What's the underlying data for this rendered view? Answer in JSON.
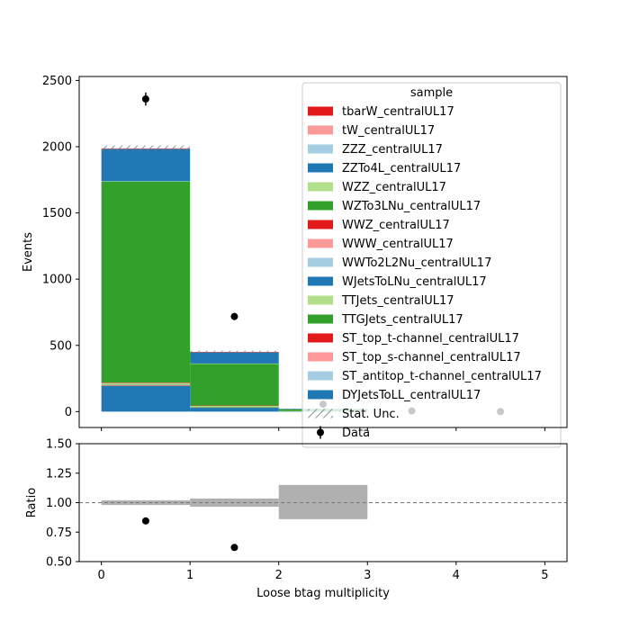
{
  "colors": {
    "red": "#e31a1c",
    "pink": "#fb9a99",
    "lightblue": "#a6cee3",
    "blue": "#1f78b4",
    "lightgreen": "#b2df8a",
    "green": "#33a02c",
    "ratio_band": "#b0b0b0",
    "data": "#000000"
  },
  "chart_data": [
    {
      "type": "bar",
      "stacked": true,
      "ylabel": "Events",
      "xlim": [
        -0.25,
        5.25
      ],
      "ylim": [
        -120,
        2530
      ],
      "yticks": [
        0,
        500,
        1000,
        1500,
        2000,
        2500
      ],
      "bin_edges": [
        0,
        1,
        2,
        3,
        4,
        5
      ],
      "legend": {
        "title": "sample",
        "placement": "top-right",
        "entries": [
          {
            "label": "tbarW_centralUL17",
            "color": "red"
          },
          {
            "label": "tW_centralUL17",
            "color": "pink"
          },
          {
            "label": "ZZZ_centralUL17",
            "color": "lightblue"
          },
          {
            "label": "ZZTo4L_centralUL17",
            "color": "blue"
          },
          {
            "label": "WZZ_centralUL17",
            "color": "lightgreen"
          },
          {
            "label": "WZTo3LNu_centralUL17",
            "color": "green"
          },
          {
            "label": "WWZ_centralUL17",
            "color": "red"
          },
          {
            "label": "WWW_centralUL17",
            "color": "pink"
          },
          {
            "label": "WWTo2L2Nu_centralUL17",
            "color": "lightblue"
          },
          {
            "label": "WJetsToLNu_centralUL17",
            "color": "blue"
          },
          {
            "label": "TTJets_centralUL17",
            "color": "lightgreen"
          },
          {
            "label": "TTGJets_centralUL17",
            "color": "green"
          },
          {
            "label": "ST_top_t-channel_centralUL17",
            "color": "red"
          },
          {
            "label": "ST_top_s-channel_centralUL17",
            "color": "pink"
          },
          {
            "label": "ST_antitop_t-channel_centralUL17",
            "color": "lightblue"
          },
          {
            "label": "DYJetsToLL_centralUL17",
            "color": "blue"
          },
          {
            "label": "Stat. Unc.",
            "kind": "hatch"
          },
          {
            "label": "Data",
            "kind": "errorbar"
          }
        ]
      },
      "series": [
        {
          "name": "DYJetsToLL_centralUL17",
          "color": "blue",
          "values": [
            195,
            30,
            2,
            0,
            0
          ]
        },
        {
          "name": "ST_antitop_t-channel_centralUL17",
          "color": "lightblue",
          "values": [
            2,
            1,
            0,
            0,
            0
          ]
        },
        {
          "name": "ST_top_s-channel_centralUL17",
          "color": "pink",
          "values": [
            1,
            0,
            0,
            0,
            0
          ]
        },
        {
          "name": "ST_top_t-channel_centralUL17",
          "color": "red",
          "values": [
            2,
            1,
            0,
            0,
            0
          ]
        },
        {
          "name": "TTGJets_centralUL17",
          "color": "green",
          "values": [
            2,
            1,
            0,
            0,
            0
          ]
        },
        {
          "name": "TTJets_centralUL17",
          "color": "lightgreen",
          "values": [
            12,
            12,
            2,
            0,
            0
          ]
        },
        {
          "name": "WJetsToLNu_centralUL17",
          "color": "blue",
          "values": [
            0,
            0,
            0,
            0,
            0
          ]
        },
        {
          "name": "WWTo2L2Nu_centralUL17",
          "color": "lightblue",
          "values": [
            1,
            0,
            0,
            0,
            0
          ]
        },
        {
          "name": "WWW_centralUL17",
          "color": "pink",
          "values": [
            1,
            0,
            0,
            0,
            0
          ]
        },
        {
          "name": "WWZ_centralUL17",
          "color": "red",
          "values": [
            3,
            1,
            0,
            0,
            0
          ]
        },
        {
          "name": "WZTo3LNu_centralUL17",
          "color": "green",
          "values": [
            1517,
            315,
            14,
            0,
            0
          ]
        },
        {
          "name": "WZZ_centralUL17",
          "color": "lightgreen",
          "values": [
            3,
            2,
            0,
            0,
            0
          ]
        },
        {
          "name": "ZZTo4L_centralUL17",
          "color": "blue",
          "values": [
            245,
            85,
            3,
            0,
            0
          ]
        },
        {
          "name": "ZZZ_centralUL17",
          "color": "lightblue",
          "values": [
            1,
            0,
            0,
            0,
            0
          ]
        },
        {
          "name": "tW_centralUL17",
          "color": "pink",
          "values": [
            1,
            1,
            0,
            0,
            0
          ]
        },
        {
          "name": "tbarW_centralUL17",
          "color": "red",
          "values": [
            1,
            1,
            0,
            0,
            0
          ]
        }
      ],
      "stat_unc": [
        22,
        10,
        2,
        0,
        0
      ],
      "data_points": [
        {
          "x": 0.5,
          "y": 2360,
          "err": 49
        },
        {
          "x": 1.5,
          "y": 718,
          "err": 27
        },
        {
          "x": 2.5,
          "y": 56,
          "err": 7
        },
        {
          "x": 3.5,
          "y": 5,
          "err": 2
        },
        {
          "x": 4.5,
          "y": 0,
          "err": 0
        }
      ]
    },
    {
      "type": "scatter",
      "xlabel": "Loose btag multiplicity",
      "ylabel": "Ratio",
      "xlim": [
        -0.25,
        5.25
      ],
      "ylim": [
        0.5,
        1.5
      ],
      "yticks": [
        "0.50",
        "0.75",
        "1.00",
        "1.25",
        "1.50"
      ],
      "xticks": [
        "0",
        "1",
        "2",
        "3",
        "4",
        "5"
      ],
      "reference_line": 1.0,
      "unc_band": [
        {
          "x0": 0,
          "x1": 1,
          "lo": 0.98,
          "hi": 1.02
        },
        {
          "x0": 1,
          "x1": 2,
          "lo": 0.965,
          "hi": 1.035
        },
        {
          "x0": 2,
          "x1": 3,
          "lo": 0.86,
          "hi": 1.15
        }
      ],
      "points": [
        {
          "x": 0.5,
          "y": 0.845
        },
        {
          "x": 1.5,
          "y": 0.62
        }
      ]
    }
  ]
}
